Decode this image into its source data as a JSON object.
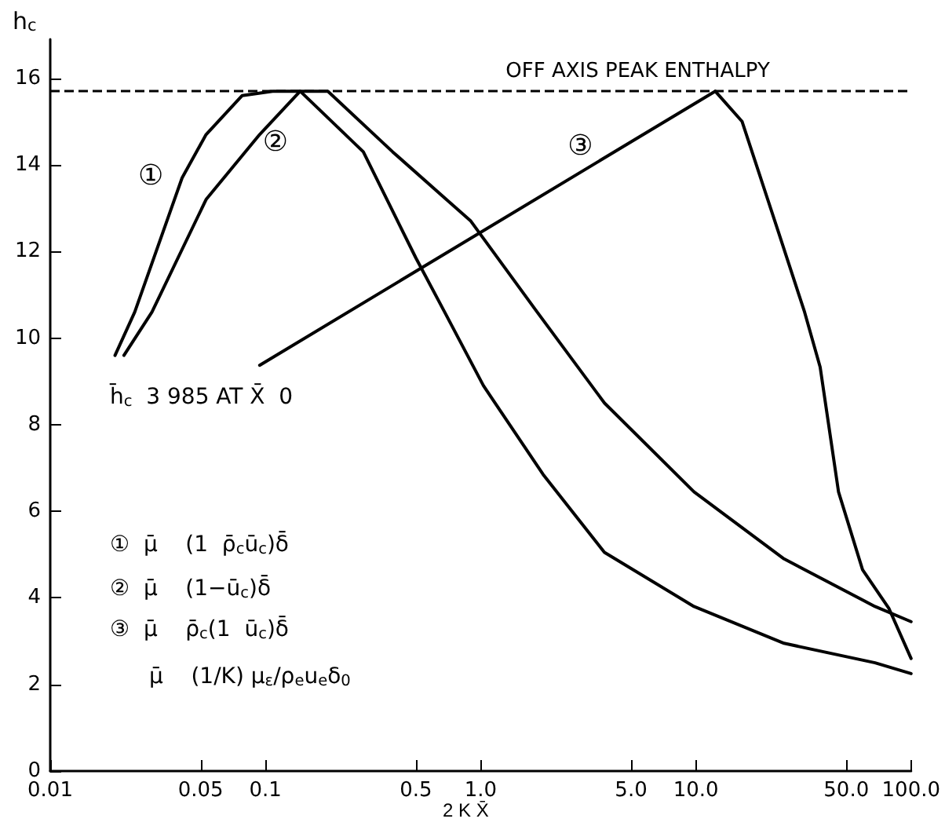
{
  "chart_data": {
    "type": "line",
    "xlabel": "2 K X̄",
    "ylabel": "h$_{c}$",
    "log": "x",
    "grid": false,
    "legend": false,
    "marker": "none",
    "line_style": "solid",
    "xlim": [
      0.01,
      100
    ],
    "ylim": [
      0,
      16.9
    ],
    "xticks": [
      0.01,
      0.05,
      0.1,
      0.5,
      {
        "value": 1,
        "label": "1.0"
      },
      {
        "value": 5,
        "label": "5.0"
      },
      {
        "value": 10,
        "label": "10.0"
      },
      {
        "value": 50,
        "label": "50.0"
      },
      {
        "value": 100,
        "label": "100.0"
      }
    ],
    "yticks": [
      0,
      2,
      4,
      6,
      8,
      10,
      12,
      14,
      16
    ],
    "series": [
      {
        "name": "①",
        "color": "#000000",
        "x": [
          0.02,
          0.0247,
          0.041,
          0.053,
          0.078,
          0.108,
          0.195,
          0.39,
          0.9,
          1.83,
          3.76,
          9.8,
          25.7,
          68,
          100
        ],
        "values": [
          9.6,
          10.6,
          13.7,
          14.7,
          15.6,
          15.7,
          15.7,
          14.3,
          12.7,
          10.6,
          8.5,
          6.45,
          4.9,
          3.8,
          3.45
        ]
      },
      {
        "name": "②",
        "color": "#000000",
        "x": [
          0.022,
          0.0297,
          0.053,
          0.094,
          0.145,
          0.285,
          0.5,
          0.68,
          1.03,
          1.95,
          3.76,
          9.8,
          25.7,
          68,
          100
        ],
        "values": [
          9.6,
          10.6,
          13.2,
          14.7,
          15.7,
          14.3,
          11.85,
          10.6,
          8.9,
          6.85,
          5.05,
          3.8,
          2.95,
          2.5,
          2.25
        ]
      },
      {
        "name": "③",
        "color": "#000000",
        "x": [
          0.094,
          12.3,
          16.4,
          24,
          32,
          37.8,
          46,
          59.5,
          79,
          100
        ],
        "values": [
          9.37,
          15.7,
          15.0,
          12.5,
          10.6,
          9.33,
          6.45,
          4.65,
          3.75,
          2.6
        ]
      }
    ],
    "ref_lines": [
      {
        "axis": "y",
        "value": 15.7,
        "label": "OFF AXIS PEAK ENTHALPY",
        "line_style": "dashed",
        "color": "#000000"
      }
    ],
    "annotations": [
      "h̄$_{c}$  3 985 AT X̄  0",
      "①  μ̄    (1  ρ̄$_{c}$ū$_{c}$)δ̄",
      "②  μ̄    (1−ū$_{c}$)δ̄",
      "③  μ̄    ρ̄$_{c}$(1  ū$_{c}$)δ̄",
      "μ̄    (1/K) μ$_{ε}$/ρ$_{e}$u$_{e}$δ$_{0}$"
    ]
  }
}
